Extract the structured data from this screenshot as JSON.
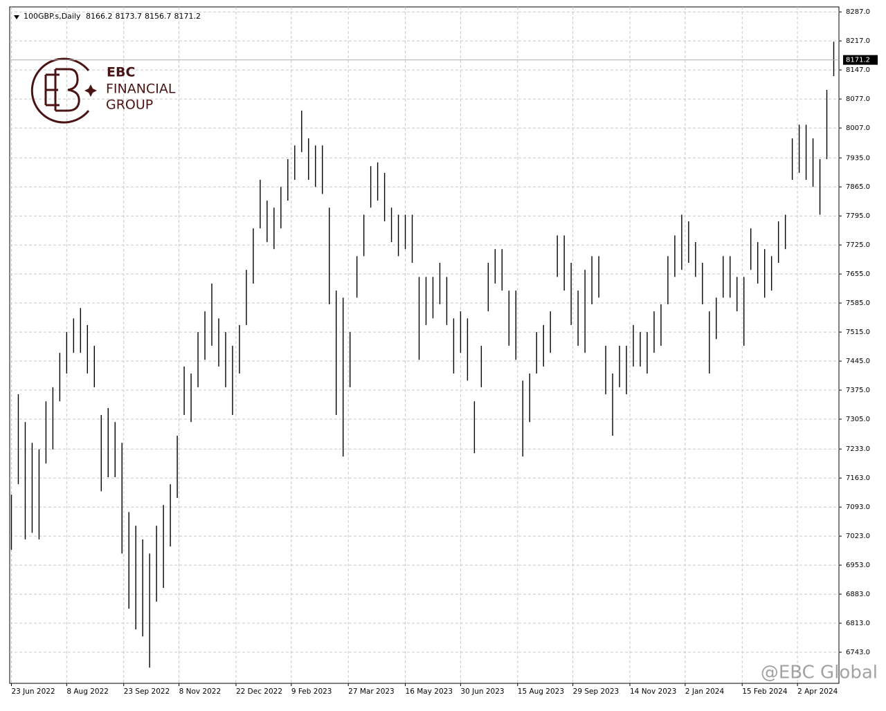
{
  "chart_data": {
    "type": "ohlc",
    "symbol": "100GBP.s,Daily",
    "header_values": [
      8166.2,
      8173.7,
      8156.7,
      8171.2
    ],
    "color": "#000000",
    "grid": true,
    "last_price": 8171.2,
    "xlim": [
      -1,
      479
    ],
    "xticks": [
      {
        "value": 0,
        "label": "23 Jun 2022"
      },
      {
        "value": 32,
        "label": "8 Aug 2022"
      },
      {
        "value": 65,
        "label": "23 Sep 2022"
      },
      {
        "value": 97,
        "label": "8 Nov 2022"
      },
      {
        "value": 130,
        "label": "22 Dec 2022"
      },
      {
        "value": 162,
        "label": "9 Feb 2023"
      },
      {
        "value": 195,
        "label": "27 Mar 2023"
      },
      {
        "value": 228,
        "label": "16 May 2023"
      },
      {
        "value": 260,
        "label": "30 Jun 2023"
      },
      {
        "value": 293,
        "label": "15 Aug 2023"
      },
      {
        "value": 325,
        "label": "29 Sep 2023"
      },
      {
        "value": 358,
        "label": "14 Nov 2023"
      },
      {
        "value": 390,
        "label": "2 Jan 2024"
      },
      {
        "value": 423,
        "label": "15 Feb 2024"
      },
      {
        "value": 455,
        "label": "2 Apr 2024"
      }
    ],
    "ylim": [
      6668,
      8299
    ],
    "yticks": [
      {
        "value": 8287,
        "label": "8287.0"
      },
      {
        "value": 8217,
        "label": "8217.0"
      },
      {
        "value": 8147,
        "label": "8147.0"
      },
      {
        "value": 8077,
        "label": "8077.0"
      },
      {
        "value": 8007,
        "label": "8007.0"
      },
      {
        "value": 7935,
        "label": "7935.0"
      },
      {
        "value": 7865,
        "label": "7865.0"
      },
      {
        "value": 7795,
        "label": "7795.0"
      },
      {
        "value": 7725,
        "label": "7725.0"
      },
      {
        "value": 7655,
        "label": "7655.0"
      },
      {
        "value": 7585,
        "label": "7585.0"
      },
      {
        "value": 7515,
        "label": "7515.0"
      },
      {
        "value": 7445,
        "label": "7445.0"
      },
      {
        "value": 7375,
        "label": "7375.0"
      },
      {
        "value": 7305,
        "label": "7305.0"
      },
      {
        "value": 7233,
        "label": "7233.0"
      },
      {
        "value": 7163,
        "label": "7163.0"
      },
      {
        "value": 7093,
        "label": "7093.0"
      },
      {
        "value": 7023,
        "label": "7023.0"
      },
      {
        "value": 6953,
        "label": "6953.0"
      },
      {
        "value": 6883,
        "label": "6883.0"
      },
      {
        "value": 6813,
        "label": "6813.0"
      },
      {
        "value": 6743,
        "label": "6743.0"
      }
    ],
    "x": [
      0,
      4,
      8,
      12,
      16,
      20,
      24,
      28,
      32,
      36,
      40,
      44,
      48,
      52,
      56,
      60,
      64,
      68,
      72,
      76,
      80,
      84,
      88,
      92,
      96,
      100,
      104,
      108,
      112,
      116,
      120,
      124,
      128,
      132,
      136,
      140,
      144,
      148,
      152,
      156,
      160,
      164,
      168,
      172,
      176,
      180,
      184,
      188,
      192,
      196,
      200,
      204,
      208,
      212,
      216,
      220,
      224,
      228,
      232,
      236,
      240,
      244,
      248,
      252,
      256,
      260,
      264,
      268,
      272,
      276,
      280,
      284,
      288,
      292,
      296,
      300,
      304,
      308,
      312,
      316,
      320,
      324,
      328,
      332,
      336,
      340,
      344,
      348,
      352,
      356,
      360,
      364,
      368,
      372,
      376,
      380,
      384,
      388,
      392,
      396,
      400,
      404,
      408,
      412,
      416,
      420,
      424,
      428,
      432,
      436,
      440,
      444,
      448,
      452,
      456,
      460,
      464,
      468,
      472,
      476
    ],
    "high": [
      7123,
      7365,
      7298,
      7248,
      7232,
      7348,
      7382,
      7465,
      7515,
      7548,
      7573,
      7532,
      7482,
      7315,
      7332,
      7298,
      7248,
      7081,
      7048,
      7015,
      6981,
      7048,
      7098,
      7148,
      7265,
      7432,
      7415,
      7515,
      7565,
      7632,
      7548,
      7515,
      7482,
      7532,
      7665,
      7765,
      7882,
      7832,
      7815,
      7865,
      7932,
      7965,
      8049,
      7982,
      7965,
      7965,
      7815,
      7615,
      7598,
      7515,
      7698,
      7798,
      7915,
      7924,
      7899,
      7815,
      7798,
      7798,
      7798,
      7648,
      7648,
      7648,
      7682,
      7648,
      7548,
      7565,
      7548,
      7348,
      7482,
      7682,
      7715,
      7715,
      7615,
      7615,
      7398,
      7415,
      7515,
      7532,
      7565,
      7748,
      7748,
      7682,
      7615,
      7665,
      7698,
      7698,
      7482,
      7415,
      7482,
      7482,
      7532,
      7515,
      7515,
      7565,
      7582,
      7698,
      7748,
      7798,
      7782,
      7732,
      7682,
      7565,
      7598,
      7698,
      7698,
      7648,
      7648,
      7765,
      7732,
      7715,
      7698,
      7782,
      7798,
      7982,
      8015,
      8015,
      7982,
      7932,
      8099,
      8215
    ],
    "low": [
      6990,
      7148,
      7015,
      7031,
      7015,
      7198,
      7232,
      7348,
      7415,
      7465,
      7465,
      7415,
      7382,
      7131,
      7165,
      7165,
      6981,
      6848,
      6798,
      6781,
      6706,
      6865,
      6898,
      6998,
      7115,
      7315,
      7298,
      7382,
      7448,
      7482,
      7432,
      7382,
      7315,
      7415,
      7532,
      7632,
      7765,
      7732,
      7715,
      7765,
      7832,
      7882,
      7949,
      7882,
      7865,
      7848,
      7582,
      7315,
      7215,
      7382,
      7598,
      7698,
      7815,
      7832,
      7782,
      7732,
      7698,
      7715,
      7682,
      7448,
      7532,
      7548,
      7582,
      7532,
      7415,
      7465,
      7398,
      7223,
      7382,
      7565,
      7632,
      7615,
      7482,
      7448,
      7215,
      7298,
      7415,
      7432,
      7465,
      7648,
      7615,
      7532,
      7482,
      7465,
      7582,
      7598,
      7365,
      7265,
      7382,
      7365,
      7432,
      7432,
      7415,
      7465,
      7482,
      7582,
      7648,
      7665,
      7682,
      7648,
      7582,
      7415,
      7498,
      7598,
      7598,
      7565,
      7482,
      7665,
      7632,
      7598,
      7615,
      7682,
      7715,
      7882,
      7899,
      7882,
      7865,
      7798,
      7932,
      8132
    ]
  },
  "logo": {
    "line1": "EBC",
    "line2": "FINANCIAL",
    "line3": "GROUP"
  },
  "watermark": "@EBC Global"
}
